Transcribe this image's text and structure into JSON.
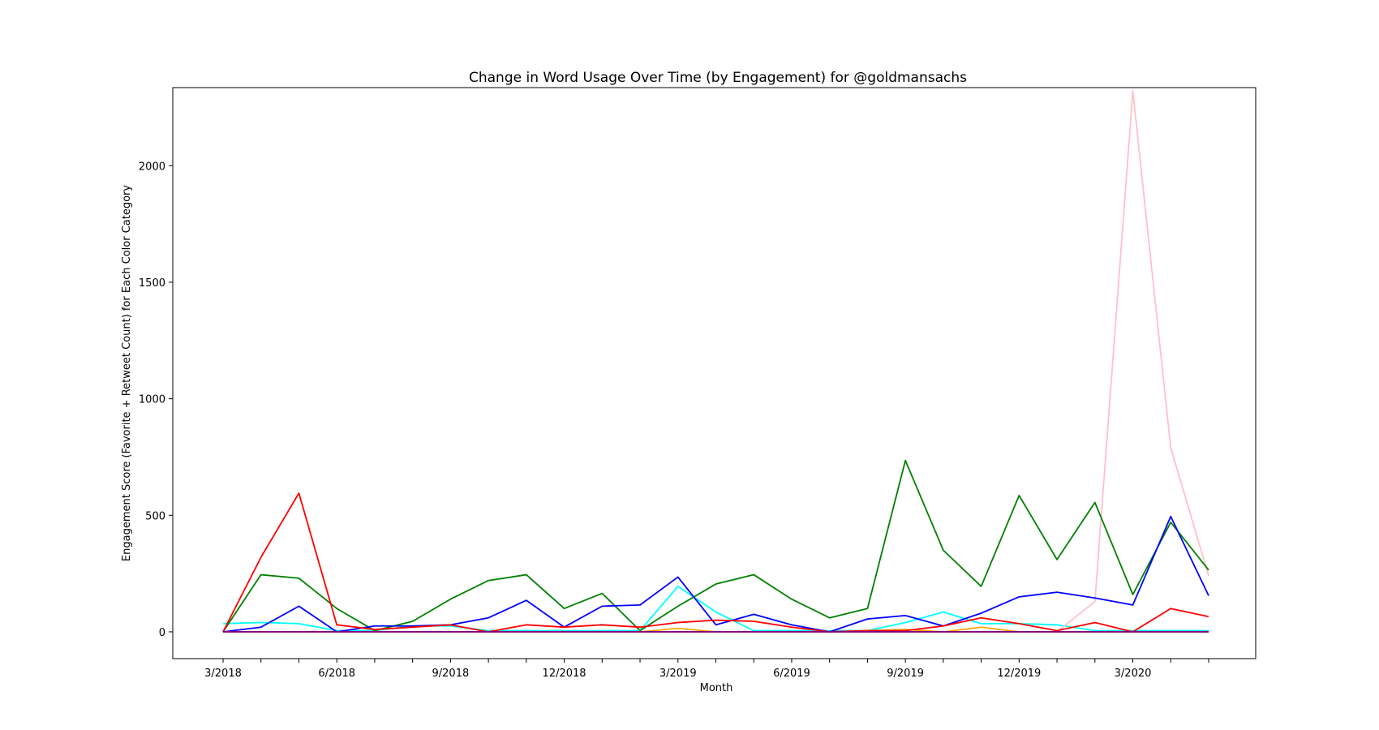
{
  "chart_data": {
    "type": "line",
    "title": "Change in Word Usage Over Time (by Engagement) for @goldmansachs",
    "xlabel": "Month",
    "ylabel": "Engagement Score (Favorite + Retweet Count) for Each Color Category",
    "x": [
      "3/2018",
      "4/2018",
      "5/2018",
      "6/2018",
      "7/2018",
      "8/2018",
      "9/2018",
      "10/2018",
      "11/2018",
      "12/2018",
      "1/2019",
      "2/2019",
      "3/2019",
      "4/2019",
      "5/2019",
      "6/2019",
      "7/2019",
      "8/2019",
      "9/2019",
      "10/2019",
      "11/2019",
      "12/2019",
      "1/2020",
      "2/2020",
      "3/2020",
      "4/2020",
      "5/2020"
    ],
    "x_tick_labels": [
      "3/2018",
      "",
      "",
      "6/2018",
      "",
      "",
      "9/2018",
      "",
      "",
      "12/2018",
      "",
      "",
      "3/2019",
      "",
      "",
      "6/2019",
      "",
      "",
      "9/2019",
      "",
      "",
      "12/2019",
      "",
      "",
      "3/2020",
      "",
      ""
    ],
    "ylim": [
      -115,
      2335
    ],
    "y_ticks": [
      0,
      500,
      1000,
      1500,
      2000
    ],
    "grid": false,
    "series": [
      {
        "color": "#00ffff",
        "values": [
          35,
          40,
          35,
          5,
          5,
          25,
          25,
          5,
          5,
          5,
          5,
          5,
          195,
          85,
          5,
          5,
          5,
          5,
          40,
          85,
          35,
          35,
          30,
          5,
          5,
          5,
          5
        ]
      },
      {
        "color": "#ffa500",
        "values": [
          0,
          0,
          0,
          0,
          0,
          0,
          0,
          0,
          0,
          0,
          0,
          0,
          15,
          0,
          0,
          0,
          0,
          5,
          10,
          0,
          20,
          0,
          0,
          0,
          0,
          0,
          0
        ]
      },
      {
        "color": "#ffc0cb",
        "values": [
          0,
          0,
          0,
          0,
          0,
          0,
          0,
          0,
          0,
          0,
          0,
          0,
          0,
          0,
          0,
          0,
          0,
          0,
          0,
          0,
          0,
          0,
          0,
          130,
          2320,
          790,
          240
        ]
      },
      {
        "color": "#008000",
        "values": [
          0,
          245,
          230,
          100,
          5,
          45,
          140,
          220,
          245,
          100,
          165,
          5,
          110,
          205,
          245,
          140,
          60,
          100,
          735,
          350,
          195,
          585,
          310,
          555,
          160,
          470,
          265
        ]
      },
      {
        "color": "#0000ff",
        "values": [
          0,
          20,
          110,
          0,
          25,
          25,
          30,
          60,
          135,
          20,
          110,
          115,
          235,
          30,
          75,
          30,
          0,
          55,
          70,
          25,
          80,
          150,
          170,
          145,
          115,
          495,
          155
        ]
      },
      {
        "color": "#ff0000",
        "values": [
          0,
          320,
          595,
          30,
          10,
          20,
          30,
          0,
          30,
          20,
          30,
          20,
          40,
          50,
          45,
          20,
          0,
          5,
          5,
          25,
          60,
          35,
          5,
          40,
          0,
          100,
          65
        ]
      },
      {
        "color": "#800080",
        "values": [
          0,
          0,
          0,
          0,
          0,
          0,
          0,
          0,
          0,
          0,
          0,
          0,
          0,
          0,
          0,
          0,
          0,
          0,
          0,
          0,
          0,
          0,
          0,
          0,
          0,
          0,
          0
        ]
      }
    ]
  }
}
